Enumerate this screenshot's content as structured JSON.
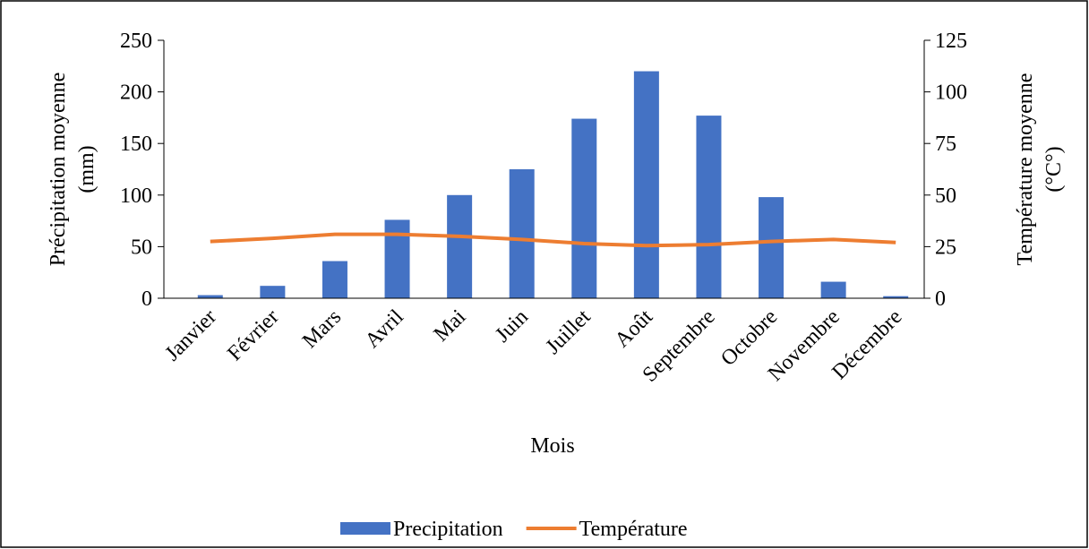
{
  "chart_data": {
    "type": "bar-line",
    "xlabel": "Mois",
    "ylabel": [
      "Précipitation moyenne",
      "(mm)"
    ],
    "y2label": [
      "Température moyenne",
      "(°C°)"
    ],
    "categories": [
      "Janvier",
      "Février",
      "Mars",
      "Avril",
      "Mai",
      "Juin",
      "Juillet",
      "Août",
      "Septembre",
      "Octobre",
      "Novembre",
      "Décembre"
    ],
    "series": [
      {
        "name": "Precipitation",
        "type": "bar",
        "color": "#4472c4",
        "values": [
          3,
          12,
          36,
          76,
          100,
          125,
          174,
          220,
          177,
          98,
          16,
          2
        ]
      },
      {
        "name": "Température",
        "type": "line",
        "axis": "y2",
        "color": "#ed7d31",
        "values": [
          27.5,
          29,
          31,
          31,
          30,
          28.5,
          26.5,
          25.5,
          26,
          27.5,
          28.5,
          27
        ]
      }
    ],
    "ylim": [
      0,
      250
    ],
    "yticks": [
      0,
      50,
      100,
      150,
      200,
      250
    ],
    "y2lim": [
      0,
      125
    ],
    "y2ticks": [
      0,
      25,
      50,
      75,
      100,
      125
    ],
    "legend": "bottom"
  }
}
